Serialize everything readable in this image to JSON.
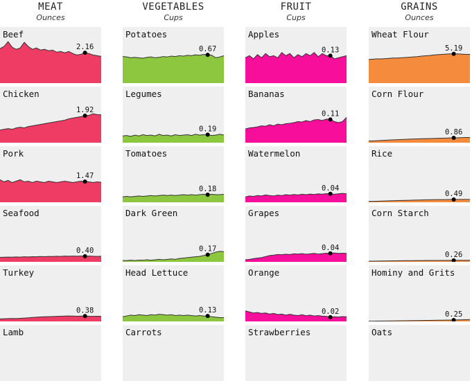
{
  "colors": {
    "meat": "#ee3c64",
    "vegetables": "#8dc63f",
    "fruit": "#f70f9b",
    "grains": "#f58b3d",
    "panel_bg": "#efefef"
  },
  "chart_data": {
    "type": "area",
    "layout": "small-multiples",
    "marker_value": "last point shown with dot and numeric label",
    "columns": [
      {
        "title": "MEAT",
        "unit": "Ounces",
        "color_key": "meat",
        "ymax": 3.0,
        "panels": [
          {
            "name": "Beef",
            "value": "2.16",
            "values": [
              2.45,
              2.6,
              2.95,
              2.55,
              2.4,
              2.5,
              2.9,
              2.6,
              2.4,
              2.5,
              2.35,
              2.4,
              2.3,
              2.35,
              2.2,
              2.25,
              2.15,
              2.25,
              2.1,
              2.0,
              2.05,
              2.16,
              2.1,
              2.0,
              1.95,
              1.9
            ]
          },
          {
            "name": "Chicken",
            "value": "1.92",
            "values": [
              0.9,
              0.95,
              1.0,
              0.95,
              1.05,
              1.1,
              1.05,
              1.15,
              1.2,
              1.25,
              1.3,
              1.35,
              1.4,
              1.45,
              1.5,
              1.55,
              1.6,
              1.7,
              1.75,
              1.8,
              1.85,
              1.92,
              1.95,
              2.05,
              2.0,
              1.98
            ]
          },
          {
            "name": "Pork",
            "value": "1.47",
            "values": [
              1.6,
              1.45,
              1.55,
              1.4,
              1.5,
              1.6,
              1.45,
              1.5,
              1.4,
              1.5,
              1.45,
              1.4,
              1.5,
              1.45,
              1.4,
              1.45,
              1.5,
              1.45,
              1.4,
              1.45,
              1.5,
              1.47,
              1.45,
              1.4,
              1.45,
              1.42
            ]
          },
          {
            "name": "Seafood",
            "value": "0.40",
            "values": [
              0.32,
              0.33,
              0.34,
              0.33,
              0.35,
              0.34,
              0.36,
              0.35,
              0.37,
              0.36,
              0.38,
              0.37,
              0.39,
              0.38,
              0.4,
              0.39,
              0.41,
              0.4,
              0.41,
              0.4,
              0.42,
              0.4,
              0.41,
              0.4,
              0.39,
              0.4
            ]
          },
          {
            "name": "Turkey",
            "value": "0.38",
            "values": [
              0.18,
              0.19,
              0.2,
              0.21,
              0.2,
              0.22,
              0.24,
              0.26,
              0.28,
              0.3,
              0.32,
              0.33,
              0.34,
              0.35,
              0.36,
              0.37,
              0.38,
              0.39,
              0.38,
              0.37,
              0.38,
              0.38,
              0.37,
              0.36,
              0.37,
              0.36
            ]
          },
          {
            "name": "Lamb",
            "value": "",
            "values": []
          }
        ]
      },
      {
        "title": "VEGETABLES",
        "unit": "Cups",
        "color_key": "vegetables",
        "ymax": 1.0,
        "panels": [
          {
            "name": "Potatoes",
            "value": "0.67",
            "values": [
              0.63,
              0.62,
              0.6,
              0.61,
              0.6,
              0.59,
              0.61,
              0.62,
              0.6,
              0.61,
              0.63,
              0.62,
              0.64,
              0.63,
              0.65,
              0.64,
              0.66,
              0.65,
              0.67,
              0.66,
              0.68,
              0.67,
              0.66,
              0.6,
              0.62,
              0.65
            ]
          },
          {
            "name": "Legumes",
            "value": "0.19",
            "values": [
              0.16,
              0.17,
              0.15,
              0.18,
              0.16,
              0.19,
              0.17,
              0.18,
              0.16,
              0.2,
              0.17,
              0.18,
              0.16,
              0.19,
              0.17,
              0.18,
              0.19,
              0.17,
              0.2,
              0.18,
              0.19,
              0.19,
              0.17,
              0.18,
              0.2,
              0.18
            ]
          },
          {
            "name": "Tomatoes",
            "value": "0.18",
            "values": [
              0.13,
              0.14,
              0.13,
              0.14,
              0.15,
              0.14,
              0.15,
              0.16,
              0.15,
              0.16,
              0.17,
              0.16,
              0.17,
              0.16,
              0.17,
              0.18,
              0.17,
              0.18,
              0.17,
              0.18,
              0.19,
              0.18,
              0.19,
              0.18,
              0.18,
              0.19
            ]
          },
          {
            "name": "Dark Green",
            "value": "0.17",
            "values": [
              0.03,
              0.03,
              0.04,
              0.03,
              0.04,
              0.04,
              0.05,
              0.04,
              0.05,
              0.06,
              0.05,
              0.06,
              0.07,
              0.06,
              0.08,
              0.09,
              0.1,
              0.11,
              0.12,
              0.13,
              0.15,
              0.17,
              0.2,
              0.23,
              0.25,
              0.24
            ]
          },
          {
            "name": "Head Lettuce",
            "value": "0.13",
            "values": [
              0.11,
              0.13,
              0.15,
              0.14,
              0.16,
              0.15,
              0.14,
              0.16,
              0.15,
              0.17,
              0.16,
              0.15,
              0.16,
              0.14,
              0.15,
              0.14,
              0.15,
              0.14,
              0.13,
              0.14,
              0.13,
              0.13,
              0.11,
              0.1,
              0.09,
              0.09
            ]
          },
          {
            "name": "Carrots",
            "value": "",
            "values": []
          }
        ]
      },
      {
        "title": "FRUIT",
        "unit": "Cups",
        "color_key": "fruit",
        "ymax": 0.2,
        "panels": [
          {
            "name": "Apples",
            "value": "0.13",
            "values": [
              0.12,
              0.13,
              0.115,
              0.135,
              0.12,
              0.14,
              0.125,
              0.13,
              0.12,
              0.145,
              0.13,
              0.14,
              0.12,
              0.135,
              0.125,
              0.14,
              0.13,
              0.145,
              0.125,
              0.14,
              0.13,
              0.13,
              0.115,
              0.12,
              0.125,
              0.13
            ]
          },
          {
            "name": "Bananas",
            "value": "0.11",
            "values": [
              0.065,
              0.07,
              0.072,
              0.075,
              0.08,
              0.078,
              0.085,
              0.08,
              0.088,
              0.085,
              0.09,
              0.092,
              0.095,
              0.1,
              0.098,
              0.105,
              0.1,
              0.108,
              0.11,
              0.105,
              0.112,
              0.11,
              0.1,
              0.095,
              0.1,
              0.12
            ]
          },
          {
            "name": "Watermelon",
            "value": "0.04",
            "values": [
              0.025,
              0.03,
              0.028,
              0.032,
              0.03,
              0.035,
              0.032,
              0.03,
              0.034,
              0.032,
              0.036,
              0.034,
              0.037,
              0.035,
              0.038,
              0.036,
              0.039,
              0.037,
              0.04,
              0.038,
              0.041,
              0.04,
              0.038,
              0.04,
              0.042,
              0.04
            ]
          },
          {
            "name": "Grapes",
            "value": "0.04",
            "values": [
              0.01,
              0.012,
              0.015,
              0.018,
              0.02,
              0.025,
              0.03,
              0.032,
              0.035,
              0.034,
              0.036,
              0.035,
              0.038,
              0.037,
              0.039,
              0.036,
              0.038,
              0.04,
              0.037,
              0.039,
              0.041,
              0.04,
              0.042,
              0.04,
              0.041,
              0.04
            ]
          },
          {
            "name": "Orange",
            "value": "0.02",
            "values": [
              0.05,
              0.045,
              0.04,
              0.042,
              0.038,
              0.04,
              0.035,
              0.038,
              0.033,
              0.035,
              0.03,
              0.034,
              0.03,
              0.028,
              0.032,
              0.027,
              0.03,
              0.026,
              0.028,
              0.025,
              0.024,
              0.02,
              0.022,
              0.021,
              0.023,
              0.022
            ]
          },
          {
            "name": "Strawberries",
            "value": "",
            "values": []
          }
        ]
      },
      {
        "title": "GRAINS",
        "unit": "Ounces",
        "color_key": "grains",
        "ymax": 7.5,
        "panels": [
          {
            "name": "Wheat Flour",
            "value": "5.19",
            "values": [
              4.2,
              4.25,
              4.3,
              4.3,
              4.35,
              4.4,
              4.45,
              4.45,
              4.5,
              4.55,
              4.6,
              4.65,
              4.7,
              4.8,
              4.85,
              4.9,
              5.0,
              5.05,
              5.1,
              5.15,
              5.2,
              5.19,
              5.2,
              5.15,
              5.1,
              5.1
            ]
          },
          {
            "name": "Corn Flour",
            "value": "0.86",
            "values": [
              0.3,
              0.33,
              0.36,
              0.4,
              0.43,
              0.47,
              0.5,
              0.54,
              0.57,
              0.6,
              0.63,
              0.66,
              0.68,
              0.7,
              0.72,
              0.74,
              0.76,
              0.78,
              0.8,
              0.82,
              0.84,
              0.86,
              0.88,
              0.9,
              0.92,
              0.93
            ]
          },
          {
            "name": "Rice",
            "value": "0.49",
            "values": [
              0.15,
              0.17,
              0.19,
              0.21,
              0.23,
              0.26,
              0.28,
              0.3,
              0.32,
              0.34,
              0.36,
              0.38,
              0.4,
              0.42,
              0.44,
              0.45,
              0.46,
              0.47,
              0.48,
              0.48,
              0.49,
              0.49,
              0.5,
              0.5,
              0.51,
              0.51
            ]
          },
          {
            "name": "Corn Starch",
            "value": "0.26",
            "values": [
              0.12,
              0.13,
              0.14,
              0.15,
              0.16,
              0.17,
              0.18,
              0.19,
              0.2,
              0.21,
              0.22,
              0.22,
              0.23,
              0.23,
              0.24,
              0.24,
              0.25,
              0.25,
              0.25,
              0.26,
              0.26,
              0.26,
              0.27,
              0.27,
              0.27,
              0.28
            ]
          },
          {
            "name": "Hominy and Grits",
            "value": "0.25",
            "values": [
              0.04,
              0.05,
              0.06,
              0.07,
              0.08,
              0.09,
              0.1,
              0.11,
              0.12,
              0.13,
              0.14,
              0.15,
              0.16,
              0.17,
              0.18,
              0.19,
              0.2,
              0.21,
              0.22,
              0.23,
              0.24,
              0.25,
              0.27,
              0.29,
              0.31,
              0.34
            ]
          },
          {
            "name": "Oats",
            "value": "",
            "values": []
          }
        ]
      }
    ]
  }
}
